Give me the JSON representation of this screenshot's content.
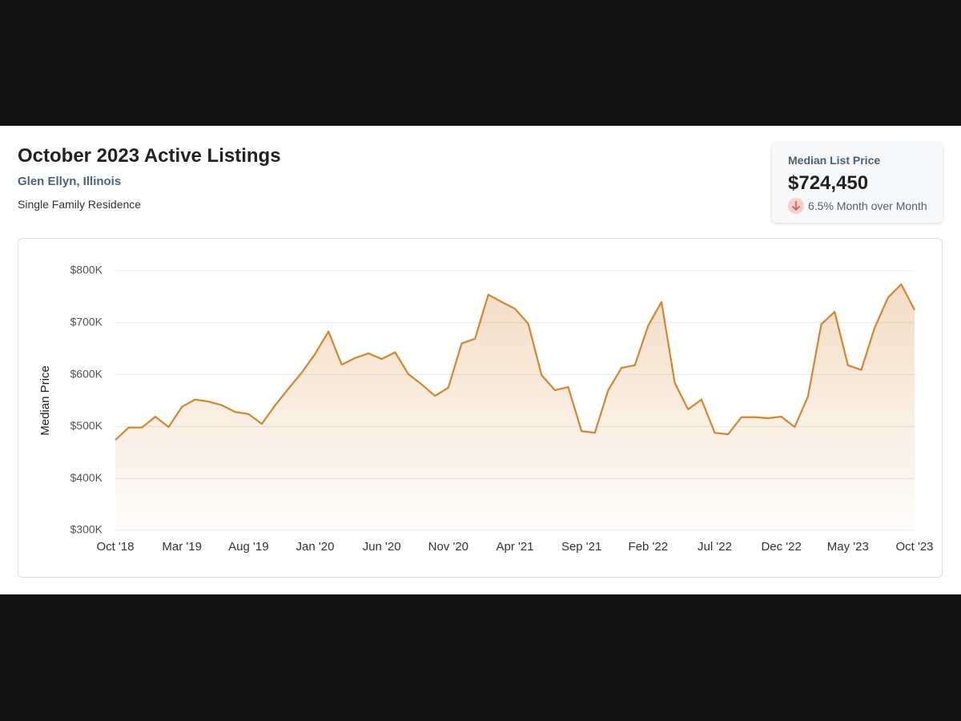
{
  "header": {
    "title": "October 2023 Active Listings",
    "location": "Glen Ellyn, Illinois",
    "subtitle": "Single Family Residence"
  },
  "card": {
    "label": "Median List Price",
    "value": "$724,450",
    "change": "6.5% Month over Month"
  },
  "chart_data": {
    "type": "area",
    "y_label": "Median Price",
    "categories": [
      "Oct '18",
      null,
      null,
      null,
      null,
      "Mar '19",
      null,
      null,
      null,
      null,
      "Aug '19",
      null,
      null,
      null,
      null,
      "Jan '20",
      null,
      null,
      null,
      null,
      "Jun '20",
      null,
      null,
      null,
      null,
      "Nov '20",
      null,
      null,
      null,
      null,
      "Apr '21",
      null,
      null,
      null,
      null,
      "Sep '21",
      null,
      null,
      null,
      null,
      "Feb '22",
      null,
      null,
      null,
      null,
      "Jul '22",
      null,
      null,
      null,
      null,
      "Dec '22",
      null,
      null,
      null,
      null,
      "May '23",
      null,
      null,
      null,
      null,
      "Oct '23"
    ],
    "series": [
      {
        "name": "Median Price",
        "color": "#d4862f",
        "values": [
          474000,
          498000,
          498000,
          519000,
          499000,
          538000,
          552000,
          548000,
          541000,
          528000,
          524000,
          505000,
          541000,
          573000,
          604000,
          640000,
          683000,
          619000,
          632000,
          641000,
          630000,
          643000,
          601000,
          581000,
          559000,
          575000,
          660000,
          669000,
          754000,
          740000,
          727000,
          698000,
          599000,
          570000,
          576000,
          491000,
          488000,
          570000,
          613000,
          618000,
          694000,
          740000,
          584000,
          533000,
          552000,
          488000,
          485000,
          518000,
          518000,
          516000,
          519000,
          499000,
          558000,
          697000,
          721000,
          618000,
          609000,
          690000,
          748000,
          774000,
          724450
        ]
      }
    ],
    "ylim": [
      300000,
      800000
    ],
    "yticks": [
      {
        "value": 300000,
        "label": "$300K"
      },
      {
        "value": 400000,
        "label": "$400K"
      },
      {
        "value": 500000,
        "label": "$500K"
      },
      {
        "value": 600000,
        "label": "$600K"
      },
      {
        "value": 700000,
        "label": "$700K"
      },
      {
        "value": 800000,
        "label": "$800K"
      }
    ],
    "grid": true
  }
}
